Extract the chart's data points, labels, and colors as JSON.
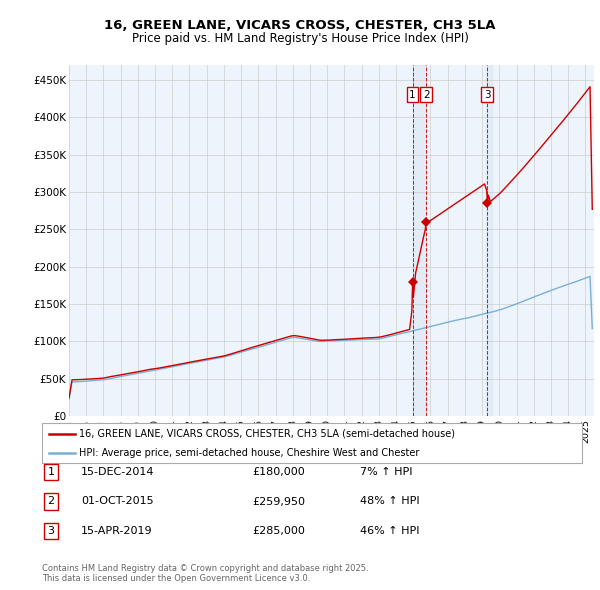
{
  "title1": "16, GREEN LANE, VICARS CROSS, CHESTER, CH3 5LA",
  "title2": "Price paid vs. HM Land Registry's House Price Index (HPI)",
  "legend_line1": "16, GREEN LANE, VICARS CROSS, CHESTER, CH3 5LA (semi-detached house)",
  "legend_line2": "HPI: Average price, semi-detached house, Cheshire West and Chester",
  "footnote": "Contains HM Land Registry data © Crown copyright and database right 2025.\nThis data is licensed under the Open Government Licence v3.0.",
  "transactions": [
    {
      "num": 1,
      "date": "15-DEC-2014",
      "price": 180000,
      "pct": "7%",
      "direction": "↑",
      "year": 2014.96
    },
    {
      "num": 2,
      "date": "01-OCT-2015",
      "price": 259950,
      "pct": "48%",
      "direction": "↑",
      "year": 2015.75
    },
    {
      "num": 3,
      "date": "15-APR-2019",
      "price": 285000,
      "pct": "46%",
      "direction": "↑",
      "year": 2019.29
    }
  ],
  "red_line_color": "#cc0000",
  "blue_line_color": "#7bafd4",
  "vline_color": "#cc0000",
  "vline_fill_color": "#dde8f5",
  "marker_box_color": "#cc0000",
  "grid_color": "#cccccc",
  "background_color": "#ffffff",
  "chart_bg_color": "#eef4fb",
  "ylim": [
    0,
    470000
  ],
  "xlim_start": 1995.0,
  "xlim_end": 2025.5,
  "yticks": [
    0,
    50000,
    100000,
    150000,
    200000,
    250000,
    300000,
    350000,
    400000,
    450000
  ],
  "ylabels": [
    "£0",
    "£50K",
    "£100K",
    "£150K",
    "£200K",
    "£250K",
    "£300K",
    "£350K",
    "£400K",
    "£450K"
  ]
}
